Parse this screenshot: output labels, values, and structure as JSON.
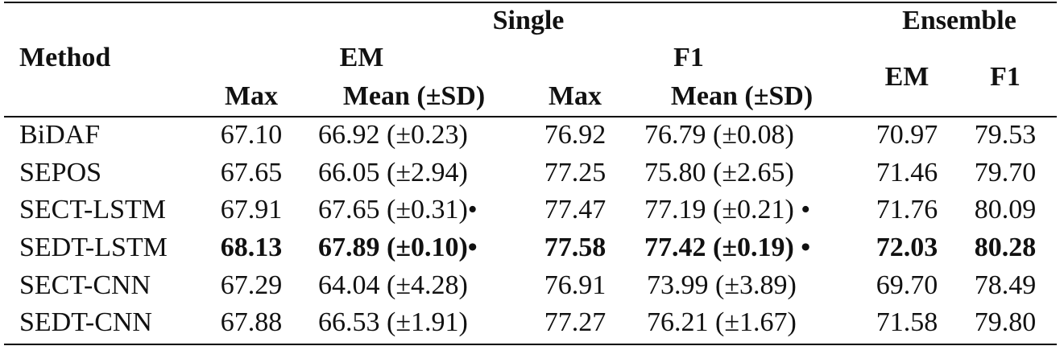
{
  "header": {
    "method": "Method",
    "single": "Single",
    "ensemble": "Ensemble",
    "em": "EM",
    "f1": "F1",
    "max": "Max",
    "mean_sd": "Mean (±SD)",
    "ens_em": "EM",
    "ens_f1": "F1"
  },
  "rows": [
    {
      "method": "BiDAF",
      "em_max": "67.10",
      "em_mean": "66.92 (±0.23)",
      "f1_max": "76.92",
      "f1_mean": "76.79 (±0.08)",
      "ens_em": "70.97",
      "ens_f1": "79.53",
      "bold": false
    },
    {
      "method": "SEPOS",
      "em_max": "67.65",
      "em_mean": "66.05 (±2.94)",
      "f1_max": "77.25",
      "f1_mean": "75.80 (±2.65)",
      "ens_em": "71.46",
      "ens_f1": "79.70",
      "bold": false
    },
    {
      "method": "SECT-LSTM",
      "em_max": "67.91",
      "em_mean": "67.65 (±0.31)•",
      "f1_max": "77.47",
      "f1_mean": "77.19 (±0.21) •",
      "ens_em": "71.76",
      "ens_f1": "80.09",
      "bold": false
    },
    {
      "method": "SEDT-LSTM",
      "em_max": "68.13",
      "em_mean": "67.89 (±0.10)•",
      "f1_max": "77.58",
      "f1_mean": "77.42 (±0.19) •",
      "ens_em": "72.03",
      "ens_f1": "80.28",
      "bold": true
    },
    {
      "method": "SECT-CNN",
      "em_max": "67.29",
      "em_mean": "64.04 (±4.28)",
      "f1_max": "76.91",
      "f1_mean": "73.99 (±3.89)",
      "ens_em": "69.70",
      "ens_f1": "78.49",
      "bold": false
    },
    {
      "method": "SEDT-CNN",
      "em_max": "67.88",
      "em_mean": "66.53 (±1.91)",
      "f1_max": "77.27",
      "f1_mean": "76.21 (±1.67)",
      "ens_em": "71.58",
      "ens_f1": "79.80",
      "bold": false
    }
  ]
}
